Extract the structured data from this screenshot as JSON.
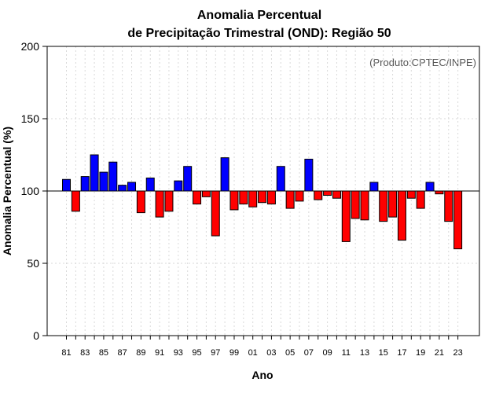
{
  "chart_data": {
    "type": "bar",
    "title": "Anomalia Percentual",
    "subtitle": "de Precipitação Trimestral (OND): Região 50",
    "xlabel": "Ano",
    "ylabel": "Anomalia Percentual (%)",
    "annotation": "(Produto:CPTEC/INPE)",
    "ylim": [
      0,
      200
    ],
    "yticks": [
      0,
      50,
      100,
      150,
      200
    ],
    "baseline": 100,
    "grid": true,
    "colors": {
      "above": "#0000ff",
      "below": "#ff0000",
      "outline": "#000000",
      "grid": "#d9d9d9"
    },
    "categories": [
      "81",
      "82",
      "83",
      "84",
      "85",
      "86",
      "87",
      "88",
      "89",
      "90",
      "91",
      "92",
      "93",
      "94",
      "95",
      "96",
      "97",
      "98",
      "99",
      "00",
      "01",
      "02",
      "03",
      "04",
      "05",
      "06",
      "07",
      "08",
      "09",
      "10",
      "11",
      "12",
      "13",
      "14",
      "15",
      "16",
      "17",
      "18",
      "19",
      "20",
      "21",
      "22",
      "23"
    ],
    "tick_labels": [
      "81",
      "83",
      "85",
      "87",
      "89",
      "91",
      "93",
      "95",
      "97",
      "99",
      "01",
      "03",
      "05",
      "07",
      "09",
      "11",
      "13",
      "15",
      "17",
      "19",
      "21",
      "23"
    ],
    "values": [
      108,
      86,
      110,
      125,
      113,
      120,
      104,
      106,
      85,
      109,
      82,
      86,
      107,
      117,
      91,
      96,
      69,
      123,
      87,
      91,
      89,
      92,
      91,
      117,
      88,
      93,
      122,
      94,
      97,
      95,
      65,
      81,
      80,
      106,
      79,
      82,
      66,
      95,
      88,
      106,
      98,
      79,
      60
    ]
  }
}
